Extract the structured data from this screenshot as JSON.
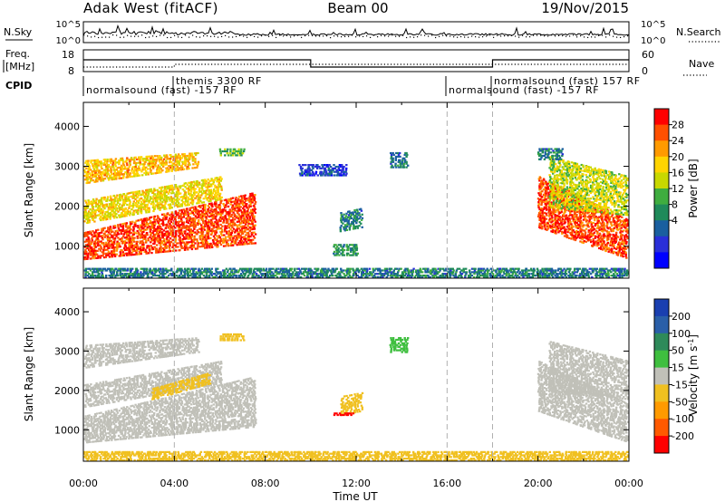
{
  "header": {
    "radar": "Adak West (fitACF)",
    "beam": "Beam 00",
    "date": "19/Nov/2015"
  },
  "noise_panel": {
    "left_label": "N.Sky",
    "right_label": "N.Search",
    "left_ticks": [
      "10^5",
      "10^0"
    ],
    "right_ticks": [
      "10^5",
      "10^0"
    ]
  },
  "freq_panel": {
    "left_label_line1": "Freq.",
    "left_label_line2": "[MHz]",
    "right_label": "Nave",
    "left_ticks": [
      "18",
      "8"
    ],
    "right_ticks": [
      "60",
      "0"
    ]
  },
  "cpid_panel": {
    "label": "CPID",
    "segments": [
      {
        "text": "normalsound (fast) -157 RF"
      },
      {
        "text": "themis 3300 RF"
      },
      {
        "text": "normalsound (fast) -157 RF"
      },
      {
        "text": "normalsound (fast) 157 RF"
      }
    ]
  },
  "x_axis": {
    "title": "Time UT",
    "ticks": [
      "00:00",
      "04:00",
      "08:00",
      "12:00",
      "16:00",
      "20:00",
      "00:00"
    ]
  },
  "colorbars": {
    "power": {
      "label": "Power [dB]",
      "ticks": [
        "28",
        "24",
        "20",
        "16",
        "12",
        "8",
        "4"
      ],
      "colors": [
        "#ff0000",
        "#ff5000",
        "#ff9a00",
        "#ffd400",
        "#c8d800",
        "#3fad3f",
        "#1f8a5a",
        "#1a5f9f",
        "#2a2fd8",
        "#0000ff"
      ]
    },
    "velocity": {
      "label": "Velocity [m s",
      "label_sup": "-1",
      "label_end": "]",
      "ticks": [
        "200",
        "100",
        "50",
        "15",
        "-15",
        "-50",
        "-100",
        "-200"
      ],
      "colors": [
        "#1a3fb0",
        "#2a5fa8",
        "#2e8a5a",
        "#3fbf3f",
        "#c0c0b8",
        "#f0c020",
        "#ff9a00",
        "#ff5a00",
        "#ff0000"
      ]
    }
  },
  "chart_data": [
    {
      "type": "heatmap",
      "title": "Power",
      "xlabel": "",
      "ylabel": "Slant Range [km]",
      "x_range_hours": [
        0,
        24
      ],
      "ylim": [
        200,
        4600
      ],
      "y_ticks": [
        1000,
        2000,
        3000,
        4000
      ],
      "colorbar_label": "Power [dB]",
      "colorbar_range": [
        0,
        32
      ],
      "regions": [
        {
          "t": [
            0.0,
            7.5
          ],
          "r_start": [
            700,
            1100
          ],
          "r_end": [
            1400,
            2400
          ],
          "value": 28
        },
        {
          "t": [
            0.0,
            6.0
          ],
          "r_start": [
            1600,
            2200
          ],
          "r_end": [
            2200,
            2800
          ],
          "value": 20
        },
        {
          "t": [
            0.0,
            5.0
          ],
          "r_start": [
            2600,
            3000
          ],
          "r_end": [
            3200,
            3400
          ],
          "value": 22
        },
        {
          "t": [
            6.0,
            7.0
          ],
          "r_start": [
            3300,
            3300
          ],
          "r_end": [
            3500,
            3500
          ],
          "value": 14
        },
        {
          "t": [
            11.3,
            12.2
          ],
          "r_start": [
            1400,
            1500
          ],
          "r_end": [
            1900,
            2000
          ],
          "value": 10
        },
        {
          "t": [
            11.0,
            12.0
          ],
          "r_start": [
            800,
            800
          ],
          "r_end": [
            1100,
            1100
          ],
          "value": 12
        },
        {
          "t": [
            13.5,
            14.2
          ],
          "r_start": [
            3000,
            3000
          ],
          "r_end": [
            3400,
            3400
          ],
          "value": 10
        },
        {
          "t": [
            9.5,
            11.5
          ],
          "r_start": [
            2800,
            2800
          ],
          "r_end": [
            3100,
            3100
          ],
          "value": 6
        },
        {
          "t": [
            20.0,
            24.0
          ],
          "r_start": [
            1500,
            700
          ],
          "r_end": [
            2800,
            1700
          ],
          "value": 28
        },
        {
          "t": [
            20.5,
            24.0
          ],
          "r_start": [
            2000,
            1800
          ],
          "r_end": [
            3300,
            2800
          ],
          "value": 18
        },
        {
          "t": [
            20.0,
            21.0
          ],
          "r_start": [
            3200,
            3200
          ],
          "r_end": [
            3500,
            3500
          ],
          "value": 10
        },
        {
          "t": [
            0.0,
            24.0
          ],
          "r_start": [
            250,
            250
          ],
          "r_end": [
            500,
            500
          ],
          "value": 10
        }
      ]
    },
    {
      "type": "heatmap",
      "title": "Velocity",
      "xlabel": "Time UT",
      "ylabel": "Slant Range [km]",
      "x_range_hours": [
        0,
        24
      ],
      "ylim": [
        200,
        4600
      ],
      "y_ticks": [
        1000,
        2000,
        3000,
        4000
      ],
      "colorbar_label": "Velocity [m s-1]",
      "colorbar_range": [
        -200,
        200
      ],
      "regions": [
        {
          "t": [
            0.0,
            7.5
          ],
          "r_start": [
            700,
            1100
          ],
          "r_end": [
            1400,
            2400
          ],
          "value": 0
        },
        {
          "t": [
            0.0,
            6.0
          ],
          "r_start": [
            1600,
            2200
          ],
          "r_end": [
            2200,
            2800
          ],
          "value": 0
        },
        {
          "t": [
            3.0,
            5.5
          ],
          "r_start": [
            1800,
            2200
          ],
          "r_end": [
            2100,
            2500
          ],
          "value": -50
        },
        {
          "t": [
            0.0,
            5.0
          ],
          "r_start": [
            2600,
            3000
          ],
          "r_end": [
            3200,
            3400
          ],
          "value": 0
        },
        {
          "t": [
            6.0,
            7.0
          ],
          "r_start": [
            3300,
            3300
          ],
          "r_end": [
            3500,
            3500
          ],
          "value": -40
        },
        {
          "t": [
            11.3,
            12.2
          ],
          "r_start": [
            1400,
            1500
          ],
          "r_end": [
            1900,
            2000
          ],
          "value": -60
        },
        {
          "t": [
            11.0,
            11.8
          ],
          "r_start": [
            1400,
            1400
          ],
          "r_end": [
            1480,
            1480
          ],
          "value": -200
        },
        {
          "t": [
            13.5,
            14.2
          ],
          "r_start": [
            3000,
            3000
          ],
          "r_end": [
            3400,
            3400
          ],
          "value": 40
        },
        {
          "t": [
            20.0,
            24.0
          ],
          "r_start": [
            1500,
            700
          ],
          "r_end": [
            2800,
            1700
          ],
          "value": 0
        },
        {
          "t": [
            20.5,
            24.0
          ],
          "r_start": [
            2000,
            1800
          ],
          "r_end": [
            3300,
            2800
          ],
          "value": 0
        },
        {
          "t": [
            0.0,
            24.0
          ],
          "r_start": [
            250,
            250
          ],
          "r_end": [
            500,
            500
          ],
          "value": -30
        }
      ]
    }
  ]
}
